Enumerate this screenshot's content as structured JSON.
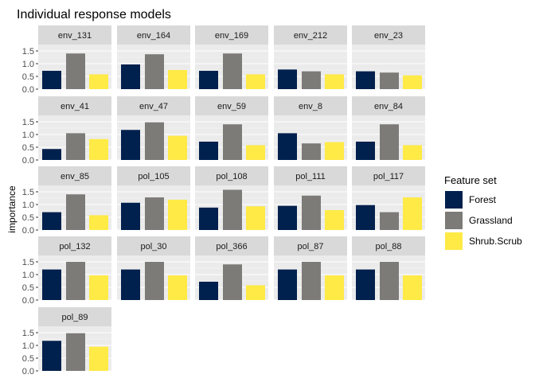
{
  "chart_data": {
    "type": "bar",
    "title": "Individual response models",
    "xlabel": "",
    "ylabel": "importance",
    "ylim": [
      0,
      1.75
    ],
    "yticks": [
      0.0,
      0.5,
      1.0,
      1.5
    ],
    "ytick_labels": [
      "0.0",
      "0.5",
      "1.0",
      "1.5"
    ],
    "grid": true,
    "legend": {
      "title": "Feature set",
      "position": "right"
    },
    "categories": [
      "Forest",
      "Grassland",
      "Shrub.Scrub"
    ],
    "colors": {
      "Forest": "#00204d",
      "Grassland": "#7c7b78",
      "Shrub.Scrub": "#ffea46"
    },
    "panel_background": "#ebebeb",
    "strip_background": "#d9d9d9",
    "panels": [
      {
        "name": "env_131",
        "values": [
          0.72,
          1.4,
          0.58
        ]
      },
      {
        "name": "env_164",
        "values": [
          0.97,
          1.37,
          0.75
        ]
      },
      {
        "name": "env_169",
        "values": [
          0.72,
          1.4,
          0.58
        ]
      },
      {
        "name": "env_212",
        "values": [
          0.77,
          0.7,
          0.58
        ]
      },
      {
        "name": "env_23",
        "values": [
          0.7,
          0.65,
          0.54
        ]
      },
      {
        "name": "env_41",
        "values": [
          0.43,
          1.05,
          0.82
        ]
      },
      {
        "name": "env_47",
        "values": [
          1.18,
          1.48,
          0.95
        ]
      },
      {
        "name": "env_59",
        "values": [
          0.72,
          1.4,
          0.58
        ]
      },
      {
        "name": "env_8",
        "values": [
          1.05,
          0.65,
          0.7
        ]
      },
      {
        "name": "env_84",
        "values": [
          0.72,
          1.4,
          0.58
        ]
      },
      {
        "name": "env_85",
        "values": [
          0.7,
          1.4,
          0.58
        ]
      },
      {
        "name": "pol_105",
        "values": [
          1.07,
          1.28,
          1.19
        ]
      },
      {
        "name": "pol_108",
        "values": [
          0.88,
          1.58,
          0.93
        ]
      },
      {
        "name": "pol_111",
        "values": [
          0.95,
          1.35,
          0.78
        ]
      },
      {
        "name": "pol_117",
        "values": [
          0.98,
          0.7,
          1.28
        ]
      },
      {
        "name": "pol_132",
        "values": [
          1.2,
          1.5,
          0.97
        ]
      },
      {
        "name": "pol_30",
        "values": [
          1.2,
          1.5,
          0.97
        ]
      },
      {
        "name": "pol_366",
        "values": [
          0.72,
          1.4,
          0.58
        ]
      },
      {
        "name": "pol_87",
        "values": [
          1.2,
          1.5,
          0.97
        ]
      },
      {
        "name": "pol_88",
        "values": [
          1.2,
          1.5,
          0.97
        ]
      },
      {
        "name": "pol_89",
        "values": [
          1.18,
          1.48,
          0.95
        ]
      }
    ]
  }
}
